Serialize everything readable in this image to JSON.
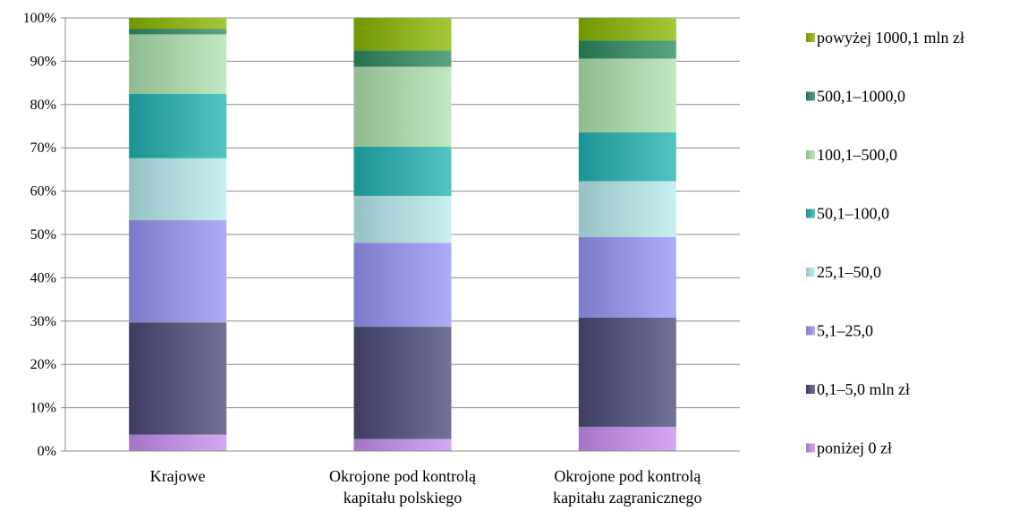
{
  "chart_data": {
    "type": "bar",
    "stacked": true,
    "percent": true,
    "title": "",
    "xlabel": "",
    "ylabel": "",
    "ylim": [
      0,
      100
    ],
    "yticks": [
      "0%",
      "10%",
      "20%",
      "30%",
      "40%",
      "50%",
      "60%",
      "70%",
      "80%",
      "90%",
      "100%"
    ],
    "grid": true,
    "legend_position": "right",
    "categories": [
      [
        "Krajowe"
      ],
      [
        "Okrojone pod kontrolą",
        "kapitału polskiego"
      ],
      [
        "Okrojone pod kontrolą",
        "kapitału zagranicznego"
      ]
    ],
    "series": [
      {
        "name": "poniżej 0 zł",
        "color": "#c98ff0",
        "values": [
          3.8,
          2.8,
          5.6
        ]
      },
      {
        "name": "0,1–5,0 mln zł",
        "color": "#4a4a78",
        "values": [
          25.9,
          25.9,
          25.2
        ]
      },
      {
        "name": "5,1–25,0",
        "color": "#9696f5",
        "values": [
          23.6,
          19.4,
          18.6
        ]
      },
      {
        "name": "25,1–50,0",
        "color": "#b8ecf0",
        "values": [
          14.3,
          10.8,
          12.9
        ]
      },
      {
        "name": "50,1–100,0",
        "color": "#22b3b3",
        "values": [
          14.9,
          11.4,
          11.3
        ]
      },
      {
        "name": "100,1–500,0",
        "color": "#b0e3b0",
        "values": [
          13.7,
          18.4,
          17.0
        ]
      },
      {
        "name": "500,1–1000,0",
        "color": "#2e8b5e",
        "values": [
          1.3,
          3.8,
          4.2
        ]
      },
      {
        "name": "powyżej 1000,1 mln zł",
        "color": "#8ab800",
        "values": [
          2.5,
          7.5,
          5.2
        ]
      }
    ]
  }
}
